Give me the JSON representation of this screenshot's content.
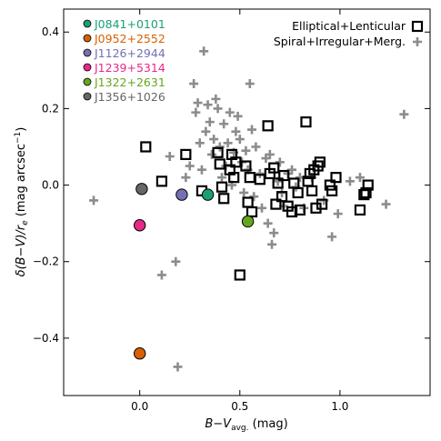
{
  "chart_data": {
    "type": "scatter",
    "xlabel": "B−V",
    "xlabel_sub": "avg.",
    "xlabel_unit": " (mag)",
    "ylabel": "δ(B−V)/r",
    "ylabel_sub": "e",
    "ylabel_unit": " (mag arcsec",
    "ylabel_sup": "−1",
    "ylabel_close": ")",
    "xlim": [
      -0.38,
      1.45
    ],
    "ylim": [
      -0.55,
      0.46
    ],
    "xticks": [
      0.0,
      0.5,
      1.0
    ],
    "xtick_labels": [
      "0.0",
      "0.5",
      "1.0"
    ],
    "yticks": [
      -0.4,
      -0.2,
      0.0,
      0.2,
      0.4
    ],
    "ytick_labels": [
      "−0.4",
      "−0.2",
      "0.0",
      "0.2",
      "0.4"
    ],
    "grid": false,
    "series": [
      {
        "name": "Elliptical+Lenticular",
        "marker": "open-square",
        "color": "#000000",
        "points": [
          {
            "x": 0.03,
            "y": 0.1
          },
          {
            "x": 0.11,
            "y": 0.01
          },
          {
            "x": 0.23,
            "y": 0.08
          },
          {
            "x": 0.31,
            "y": -0.015
          },
          {
            "x": 0.39,
            "y": 0.085
          },
          {
            "x": 0.4,
            "y": 0.055
          },
          {
            "x": 0.41,
            "y": -0.005
          },
          {
            "x": 0.42,
            "y": -0.035
          },
          {
            "x": 0.45,
            "y": 0.04
          },
          {
            "x": 0.46,
            "y": 0.08
          },
          {
            "x": 0.47,
            "y": 0.02
          },
          {
            "x": 0.48,
            "y": 0.06
          },
          {
            "x": 0.5,
            "y": -0.235
          },
          {
            "x": 0.53,
            "y": 0.05
          },
          {
            "x": 0.54,
            "y": -0.045
          },
          {
            "x": 0.55,
            "y": 0.02
          },
          {
            "x": 0.56,
            "y": -0.07
          },
          {
            "x": 0.6,
            "y": 0.015
          },
          {
            "x": 0.64,
            "y": 0.155
          },
          {
            "x": 0.65,
            "y": 0.03
          },
          {
            "x": 0.67,
            "y": 0.045
          },
          {
            "x": 0.68,
            "y": -0.05
          },
          {
            "x": 0.69,
            "y": 0.005
          },
          {
            "x": 0.71,
            "y": -0.03
          },
          {
            "x": 0.72,
            "y": 0.025
          },
          {
            "x": 0.74,
            "y": -0.055
          },
          {
            "x": 0.76,
            "y": -0.07
          },
          {
            "x": 0.77,
            "y": 0.005
          },
          {
            "x": 0.79,
            "y": -0.02
          },
          {
            "x": 0.8,
            "y": -0.065
          },
          {
            "x": 0.83,
            "y": 0.165
          },
          {
            "x": 0.84,
            "y": 0.01
          },
          {
            "x": 0.85,
            "y": 0.03
          },
          {
            "x": 0.86,
            "y": -0.015
          },
          {
            "x": 0.87,
            "y": 0.04
          },
          {
            "x": 0.88,
            "y": -0.06
          },
          {
            "x": 0.89,
            "y": 0.05
          },
          {
            "x": 0.9,
            "y": 0.06
          },
          {
            "x": 0.91,
            "y": -0.05
          },
          {
            "x": 0.95,
            "y": 0.0
          },
          {
            "x": 0.96,
            "y": -0.015
          },
          {
            "x": 0.98,
            "y": 0.02
          },
          {
            "x": 1.1,
            "y": -0.065
          },
          {
            "x": 1.12,
            "y": -0.025
          },
          {
            "x": 1.13,
            "y": -0.02
          },
          {
            "x": 1.14,
            "y": 0.0
          }
        ]
      },
      {
        "name": "Spiral+Irregular+Merg.",
        "marker": "plus",
        "color": "#8c8c8c",
        "points": [
          {
            "x": -0.23,
            "y": -0.04
          },
          {
            "x": 0.11,
            "y": -0.235
          },
          {
            "x": 0.15,
            "y": 0.075
          },
          {
            "x": 0.18,
            "y": -0.2
          },
          {
            "x": 0.19,
            "y": -0.475
          },
          {
            "x": 0.23,
            "y": 0.02
          },
          {
            "x": 0.25,
            "y": 0.05
          },
          {
            "x": 0.27,
            "y": 0.265
          },
          {
            "x": 0.28,
            "y": 0.19
          },
          {
            "x": 0.29,
            "y": 0.215
          },
          {
            "x": 0.3,
            "y": 0.11
          },
          {
            "x": 0.31,
            "y": 0.04
          },
          {
            "x": 0.32,
            "y": 0.35
          },
          {
            "x": 0.33,
            "y": 0.14
          },
          {
            "x": 0.34,
            "y": 0.21
          },
          {
            "x": 0.35,
            "y": 0.165
          },
          {
            "x": 0.36,
            "y": 0.08
          },
          {
            "x": 0.37,
            "y": 0.12
          },
          {
            "x": 0.38,
            "y": 0.225
          },
          {
            "x": 0.39,
            "y": 0.2
          },
          {
            "x": 0.4,
            "y": 0.1
          },
          {
            "x": 0.41,
            "y": 0.02
          },
          {
            "x": 0.42,
            "y": 0.16
          },
          {
            "x": 0.43,
            "y": 0.05
          },
          {
            "x": 0.44,
            "y": 0.11
          },
          {
            "x": 0.45,
            "y": 0.19
          },
          {
            "x": 0.46,
            "y": 0.0
          },
          {
            "x": 0.47,
            "y": 0.085
          },
          {
            "x": 0.48,
            "y": 0.14
          },
          {
            "x": 0.49,
            "y": 0.18
          },
          {
            "x": 0.5,
            "y": 0.12
          },
          {
            "x": 0.51,
            "y": 0.06
          },
          {
            "x": 0.52,
            "y": -0.02
          },
          {
            "x": 0.53,
            "y": 0.09
          },
          {
            "x": 0.54,
            "y": 0.04
          },
          {
            "x": 0.55,
            "y": 0.265
          },
          {
            "x": 0.56,
            "y": 0.145
          },
          {
            "x": 0.57,
            "y": -0.03
          },
          {
            "x": 0.58,
            "y": 0.1
          },
          {
            "x": 0.6,
            "y": 0.03
          },
          {
            "x": 0.61,
            "y": -0.06
          },
          {
            "x": 0.63,
            "y": 0.07
          },
          {
            "x": 0.64,
            "y": -0.1
          },
          {
            "x": 0.65,
            "y": 0.08
          },
          {
            "x": 0.66,
            "y": -0.155
          },
          {
            "x": 0.67,
            "y": -0.125
          },
          {
            "x": 0.69,
            "y": 0.01
          },
          {
            "x": 0.7,
            "y": 0.06
          },
          {
            "x": 0.71,
            "y": -0.02
          },
          {
            "x": 0.72,
            "y": -0.055
          },
          {
            "x": 0.74,
            "y": 0.03
          },
          {
            "x": 0.76,
            "y": 0.04
          },
          {
            "x": 0.78,
            "y": -0.005
          },
          {
            "x": 0.8,
            "y": 0.02
          },
          {
            "x": 0.82,
            "y": -0.06
          },
          {
            "x": 0.86,
            "y": 0.02
          },
          {
            "x": 0.92,
            "y": -0.04
          },
          {
            "x": 0.96,
            "y": -0.135
          },
          {
            "x": 0.99,
            "y": -0.075
          },
          {
            "x": 1.05,
            "y": 0.01
          },
          {
            "x": 1.1,
            "y": 0.02
          },
          {
            "x": 1.23,
            "y": -0.05
          },
          {
            "x": 1.32,
            "y": 0.185
          }
        ]
      },
      {
        "name": "J0841+0101",
        "marker": "circle",
        "color": "#1b9e77",
        "points": [
          {
            "x": 0.34,
            "y": -0.025
          }
        ]
      },
      {
        "name": "J0952+2552",
        "marker": "circle",
        "color": "#d95f02",
        "points": [
          {
            "x": 0.0,
            "y": -0.44
          }
        ]
      },
      {
        "name": "J1126+2944",
        "marker": "circle",
        "color": "#7570b3",
        "points": [
          {
            "x": 0.21,
            "y": -0.025
          }
        ]
      },
      {
        "name": "J1239+5314",
        "marker": "circle",
        "color": "#e7298a",
        "points": [
          {
            "x": 0.0,
            "y": -0.105
          }
        ]
      },
      {
        "name": "J1322+2631",
        "marker": "circle",
        "color": "#66a61e",
        "points": [
          {
            "x": 0.54,
            "y": -0.095
          }
        ]
      },
      {
        "name": "J1356+1026",
        "marker": "circle",
        "color": "#666666",
        "points": [
          {
            "x": 0.01,
            "y": -0.01
          }
        ]
      }
    ],
    "legend_left": {
      "placement": "top-left",
      "entries": [
        "J0841+0101",
        "J0952+2552",
        "J1126+2944",
        "J1239+5314",
        "J1322+2631",
        "J1356+1026"
      ]
    },
    "legend_right": {
      "placement": "top-right",
      "entries": [
        "Elliptical+Lenticular",
        "Spiral+Irregular+Merg."
      ]
    }
  }
}
